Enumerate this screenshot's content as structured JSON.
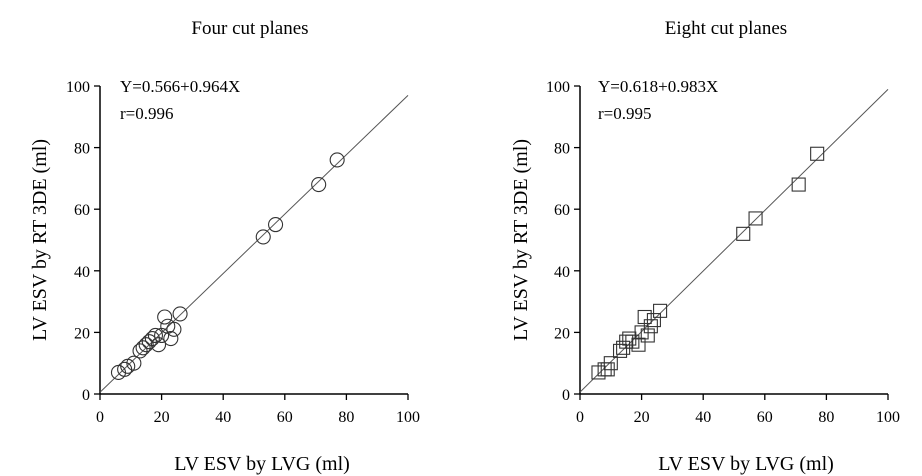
{
  "chart_data": [
    {
      "type": "scatter",
      "title": "Four cut planes",
      "xlabel": "LV ESV by LVG (ml)",
      "ylabel": "LV ESV by RT 3DE (ml)",
      "xlim": [
        0,
        100
      ],
      "ylim": [
        0,
        100
      ],
      "xticks": [
        "0",
        "20",
        "40",
        "60",
        "80",
        "100"
      ],
      "yticks": [
        "0",
        "20",
        "40",
        "60",
        "80",
        "100"
      ],
      "marker": "circle",
      "annotations": [
        "Y=0.566+0.964X",
        "r=0.996"
      ],
      "fit_line": {
        "intercept": 0.566,
        "slope": 0.964
      },
      "points": [
        [
          6,
          7
        ],
        [
          8,
          8
        ],
        [
          9,
          9
        ],
        [
          11,
          10
        ],
        [
          13,
          14
        ],
        [
          14,
          15
        ],
        [
          15,
          16
        ],
        [
          16,
          17
        ],
        [
          17,
          18
        ],
        [
          18,
          19
        ],
        [
          19,
          16
        ],
        [
          20,
          19
        ],
        [
          21,
          25
        ],
        [
          22,
          22
        ],
        [
          23,
          18
        ],
        [
          24,
          21
        ],
        [
          26,
          26
        ],
        [
          53,
          51
        ],
        [
          57,
          55
        ],
        [
          71,
          68
        ],
        [
          77,
          76
        ]
      ]
    },
    {
      "type": "scatter",
      "title": "Eight cut planes",
      "xlabel": "LV ESV by LVG (ml)",
      "ylabel": "LV ESV by RT 3DE (ml)",
      "xlim": [
        0,
        100
      ],
      "ylim": [
        0,
        100
      ],
      "xticks": [
        "0",
        "20",
        "40",
        "60",
        "80",
        "100"
      ],
      "yticks": [
        "0",
        "20",
        "40",
        "60",
        "80",
        "100"
      ],
      "marker": "square",
      "annotations": [
        "Y=0.618+0.983X",
        "r=0.995"
      ],
      "fit_line": {
        "intercept": 0.618,
        "slope": 0.983
      },
      "points": [
        [
          6,
          7
        ],
        [
          8,
          8
        ],
        [
          9,
          8
        ],
        [
          10,
          10
        ],
        [
          13,
          14
        ],
        [
          14,
          15
        ],
        [
          15,
          17
        ],
        [
          16,
          18
        ],
        [
          17,
          17
        ],
        [
          19,
          16
        ],
        [
          20,
          20
        ],
        [
          21,
          25
        ],
        [
          22,
          19
        ],
        [
          23,
          22
        ],
        [
          24,
          24
        ],
        [
          26,
          27
        ],
        [
          53,
          52
        ],
        [
          57,
          57
        ],
        [
          71,
          68
        ],
        [
          77,
          78
        ]
      ]
    }
  ]
}
